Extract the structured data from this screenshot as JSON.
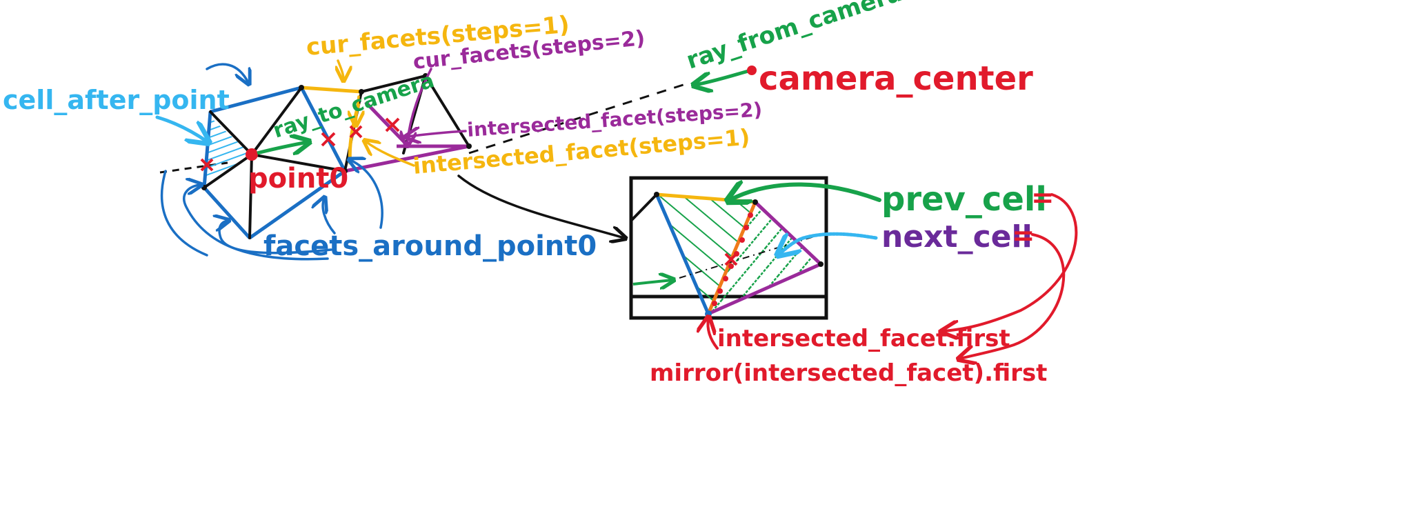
{
  "colors": {
    "black": "#111111",
    "blue": "#1a6fc4",
    "lightblue": "#35b6f0",
    "green": "#17a24a",
    "yellow": "#f5b60f",
    "purple": "#9a2a9a",
    "red": "#e11a2b",
    "navy": "#3a2a8a",
    "orange": "#f07a1a"
  },
  "labels": {
    "cell_after_point": "cell_after_point",
    "point0": "point0",
    "facets_around_point0": "facets_around_point0",
    "ray_to_camera": "ray_to_camera",
    "cur_facets_1": "cur_facets(steps=1)",
    "cur_facets_2": "cur_facets(steps=2)",
    "ray_from_camera": "ray_from_camera",
    "camera_center": "camera_center",
    "intersected_facet_2": "intersected_facet(steps=2)",
    "intersected_facet_1": "intersected_facet(steps=1)",
    "prev_cell": "prev_cell",
    "prev_cell_eq": "=",
    "next_cell": "next_cell",
    "next_cell_eq": "=",
    "intersected_facet_first": "intersected_facet.first",
    "mirror_first": "mirror(intersected_facet).first"
  }
}
